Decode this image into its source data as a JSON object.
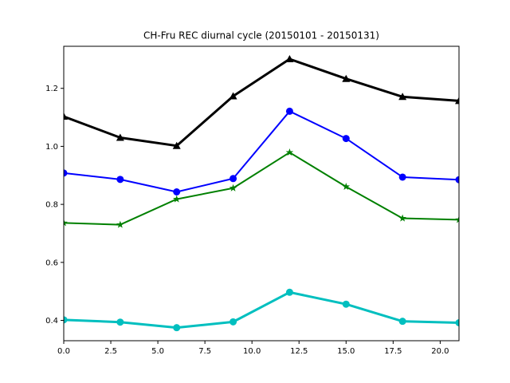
{
  "chart_data": {
    "type": "line",
    "title": "CH-Fru REC diurnal cycle (20150101 - 20150131)",
    "xlabel": "",
    "ylabel": "",
    "xlim": [
      0,
      21
    ],
    "ylim": [
      0.33,
      1.345
    ],
    "grid": false,
    "x": [
      0,
      3,
      6,
      9,
      12,
      15,
      18,
      21
    ],
    "xticks": [
      0.0,
      2.5,
      5.0,
      7.5,
      10.0,
      12.5,
      15.0,
      17.5,
      20.0
    ],
    "xtick_labels": [
      "0.0",
      "2.5",
      "5.0",
      "7.5",
      "10.0",
      "12.5",
      "15.0",
      "17.5",
      "20.0"
    ],
    "yticks": [
      0.4,
      0.6,
      0.8,
      1.0,
      1.2
    ],
    "ytick_labels": [
      "0.4",
      "0.6",
      "0.8",
      "1.0",
      "1.2"
    ],
    "series": [
      {
        "values": [
          1.103,
          1.03,
          1.002,
          1.173,
          1.301,
          1.233,
          1.171,
          1.157
        ],
        "color": "#000000",
        "marker": "triangle",
        "width": 3
      },
      {
        "values": [
          0.908,
          0.886,
          0.843,
          0.889,
          1.121,
          1.027,
          0.894,
          0.885
        ],
        "color": "#0000ff",
        "marker": "circle",
        "width": 2
      },
      {
        "values": [
          0.736,
          0.73,
          0.818,
          0.856,
          0.979,
          0.861,
          0.752,
          0.747
        ],
        "color": "#008000",
        "marker": "star",
        "width": 2
      },
      {
        "values": [
          0.402,
          0.394,
          0.375,
          0.395,
          0.497,
          0.456,
          0.397,
          0.392
        ],
        "color": "#00bfbf",
        "marker": "circle",
        "width": 3
      }
    ]
  }
}
